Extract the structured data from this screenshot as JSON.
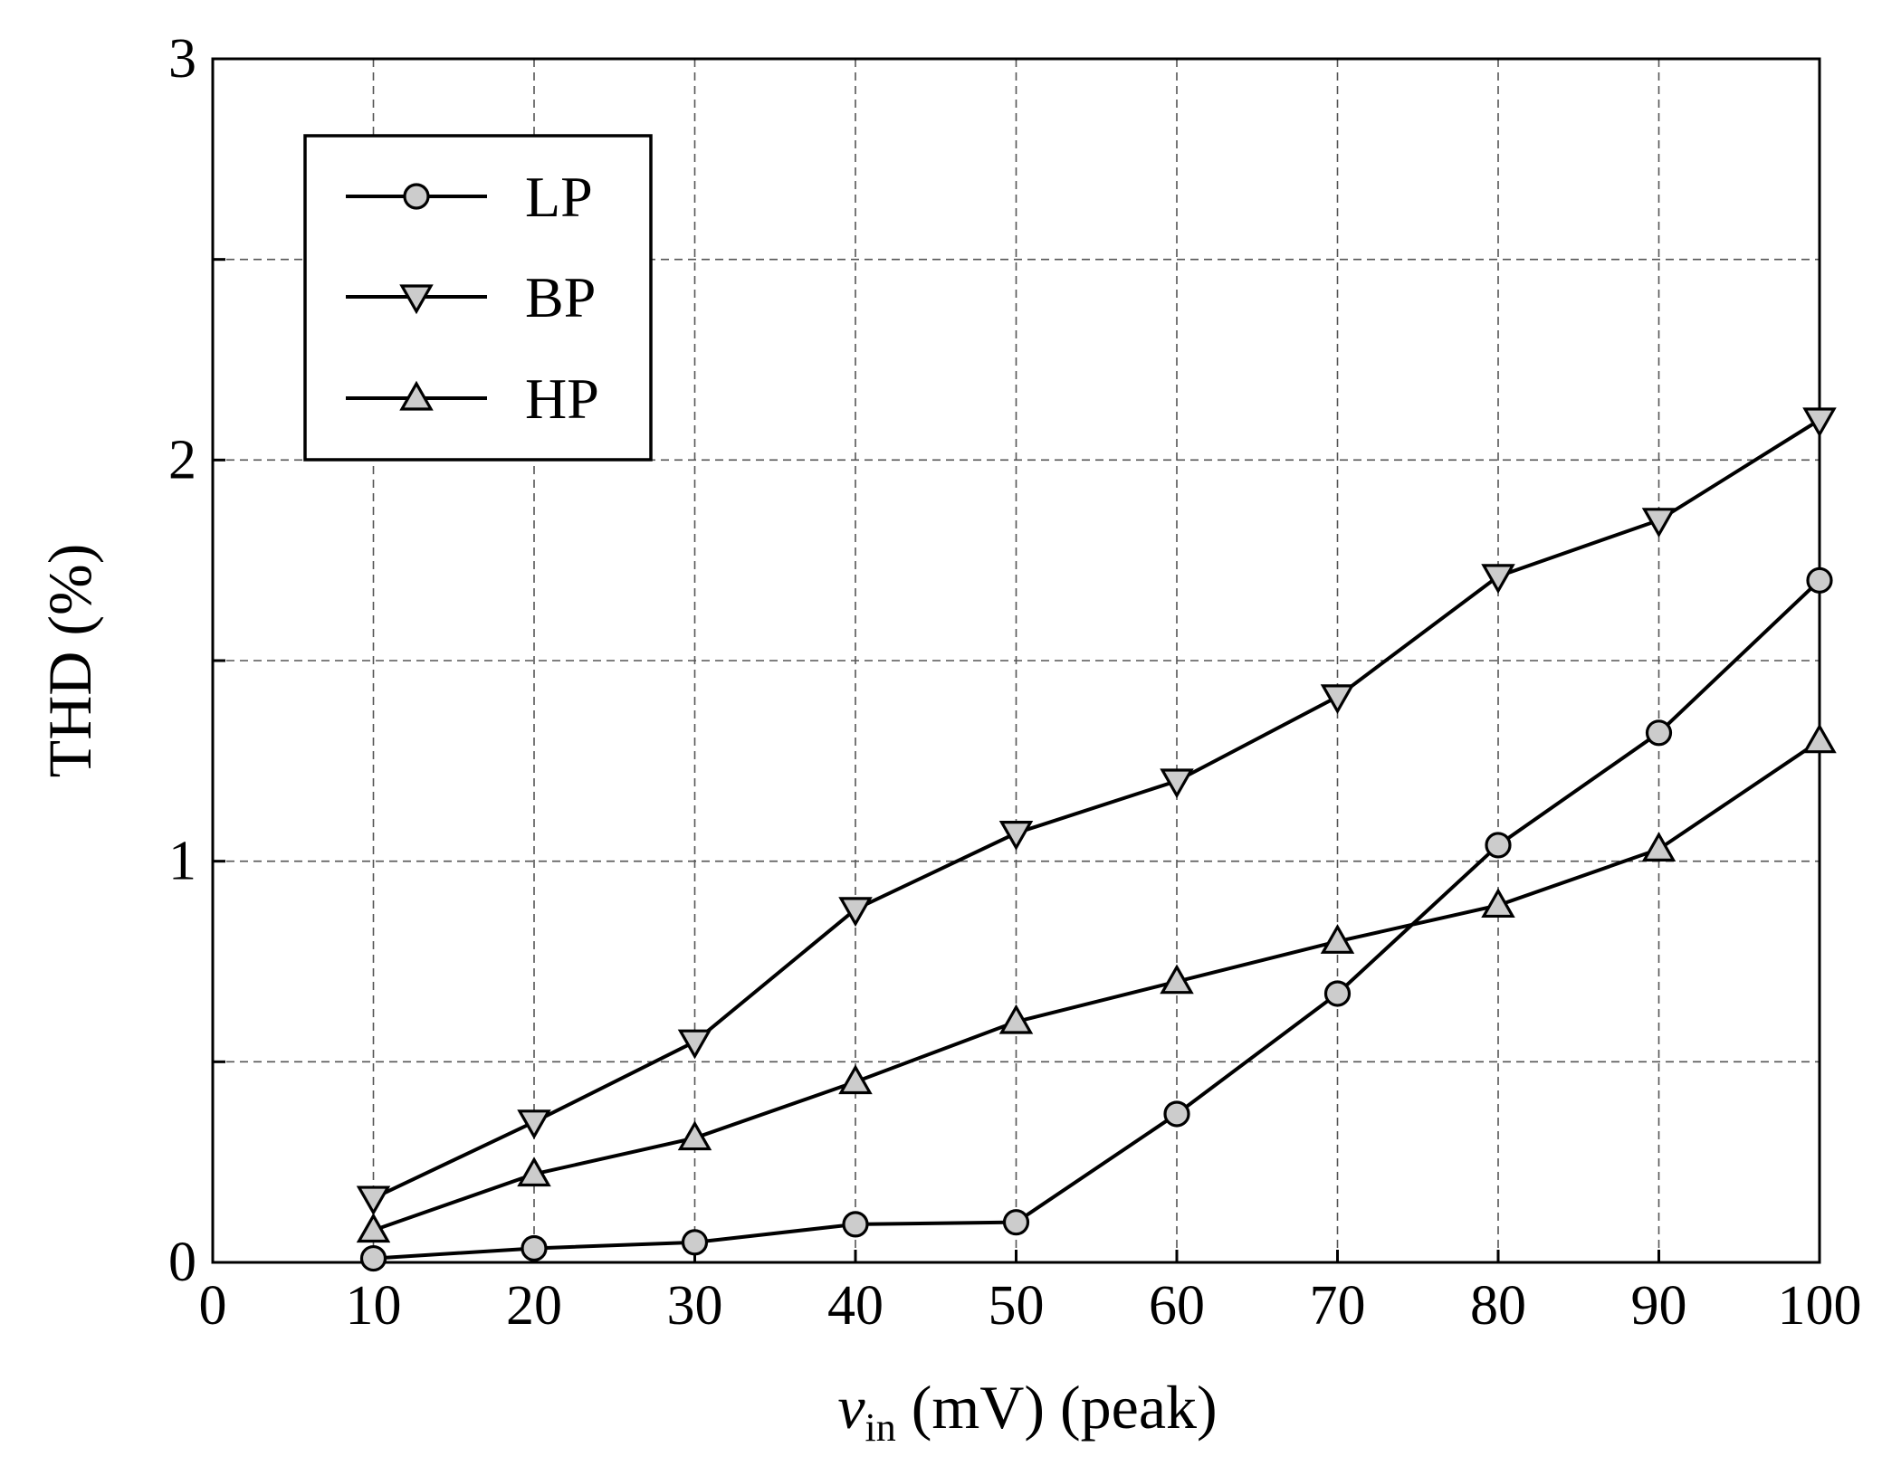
{
  "chart_data": {
    "type": "line",
    "title": "",
    "xlabel_main": "v",
    "xlabel_sub": "in",
    "xlabel_rest": " (mV) (peak)",
    "ylabel": "THD (%)",
    "xlim": [
      0,
      100
    ],
    "ylim": [
      0,
      3
    ],
    "xticks": [
      "0",
      "10",
      "20",
      "30",
      "40",
      "50",
      "60",
      "70",
      "80",
      "90",
      "100"
    ],
    "yticks": [
      "0",
      "1",
      "2",
      "3"
    ],
    "grid": true,
    "legend_position": "top-left",
    "x": [
      10,
      20,
      30,
      40,
      50,
      60,
      70,
      80,
      90,
      100
    ],
    "series": [
      {
        "name": "LP",
        "marker": "circle",
        "values": [
          0.01,
          0.035,
          0.05,
          0.095,
          0.1,
          0.37,
          0.67,
          1.04,
          1.32,
          1.7
        ]
      },
      {
        "name": "BP",
        "marker": "triangle-down",
        "values": [
          0.16,
          0.35,
          0.55,
          0.88,
          1.07,
          1.2,
          1.41,
          1.71,
          1.85,
          2.1
        ]
      },
      {
        "name": "HP",
        "marker": "triangle-up",
        "values": [
          0.08,
          0.22,
          0.31,
          0.45,
          0.6,
          0.7,
          0.8,
          0.89,
          1.03,
          1.3
        ]
      }
    ],
    "colors": {
      "marker_fill": "#cccccc",
      "line": "#000000"
    }
  }
}
